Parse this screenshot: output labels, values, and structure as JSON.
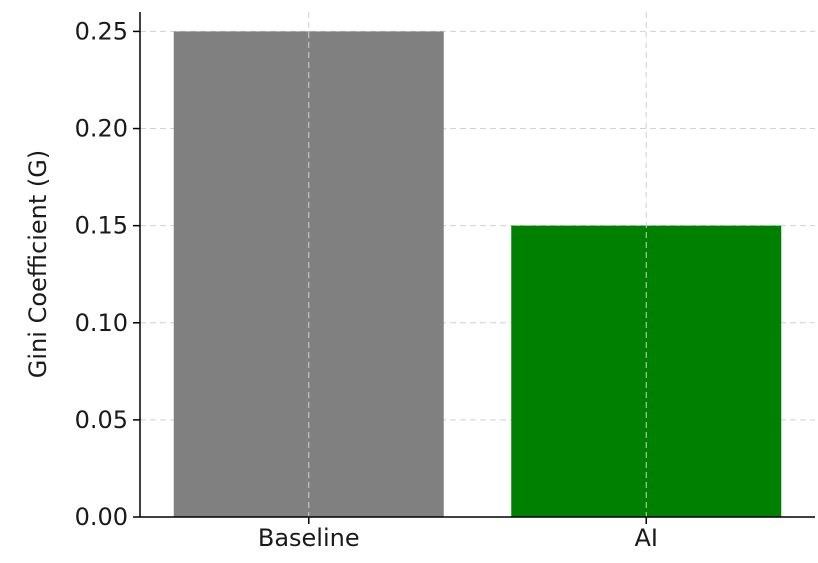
{
  "chart_data": {
    "type": "bar",
    "categories": [
      "Baseline",
      "AI"
    ],
    "values": [
      0.25,
      0.15
    ],
    "colors": [
      "#808080",
      "#008000"
    ],
    "title": "",
    "xlabel": "",
    "ylabel": "Gini Coefficient (G)",
    "ylim": [
      0,
      0.26
    ],
    "yticks": [
      0.0,
      0.05,
      0.1,
      0.15,
      0.2,
      0.25
    ],
    "ytick_labels": [
      "0.00",
      "0.05",
      "0.10",
      "0.15",
      "0.20",
      "0.25"
    ],
    "grid": true,
    "grid_style": "dashed"
  }
}
